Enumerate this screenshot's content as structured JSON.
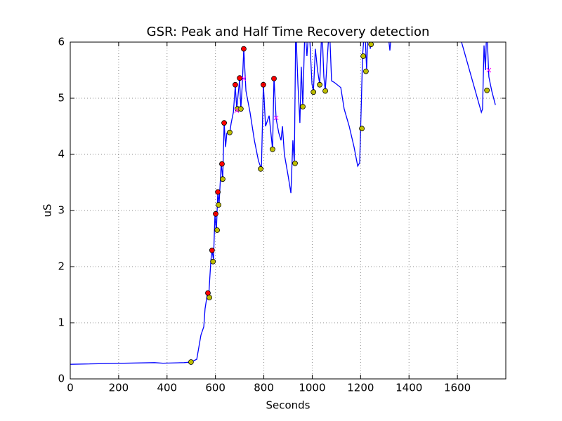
{
  "chart_data": {
    "type": "line",
    "title": "GSR: Peak and Half Time Recovery detection",
    "x_label": "Seconds",
    "y_label": "uS",
    "xlim": [
      0,
      1800
    ],
    "ylim": [
      0,
      6
    ],
    "xticks": [
      0,
      200,
      400,
      600,
      800,
      1000,
      1200,
      1400,
      1600
    ],
    "yticks": [
      0,
      1,
      2,
      3,
      4,
      5,
      6
    ],
    "grid": true,
    "series": [
      {
        "type": "line",
        "color": "#0000ff",
        "x": [
          0,
          348,
          383,
          470,
          499,
          523,
          540,
          552,
          557,
          566,
          572,
          581,
          586,
          592,
          598,
          604,
          610,
          615,
          624,
          630,
          636,
          642,
          647,
          659,
          665,
          674,
          682,
          688,
          700,
          705,
          711,
          717,
          726,
          743,
          761,
          778,
          790,
          798,
          807,
          822,
          836,
          842,
          851,
          862,
          871,
          877,
          885,
          900,
          912,
          920,
          926,
          932,
          941,
          949,
          955,
          961,
          970,
          978,
          987,
          999,
          1005,
          1013,
          1022,
          1031,
          1040,
          1048,
          1054,
          1063,
          1071,
          1080,
          1092,
          1118,
          1132,
          1153,
          1173,
          1188,
          1196,
          1202,
          1208,
          1217,
          1225,
          1231,
          1240,
          1248,
          1260,
          1310,
          1321,
          1330,
          1600,
          1617,
          1699,
          1704,
          1710,
          1716,
          1721,
          1730,
          1742,
          1757
        ],
        "values": [
          0.26,
          0.29,
          0.28,
          0.29,
          0.3,
          0.35,
          0.78,
          0.93,
          1.25,
          1.5,
          1.45,
          2.1,
          2.29,
          2.12,
          2.94,
          2.63,
          3.35,
          3.1,
          3.84,
          3.56,
          4.56,
          4.13,
          4.38,
          4.38,
          4.56,
          4.75,
          5.22,
          4.81,
          5.34,
          4.81,
          5.25,
          5.88,
          5.13,
          4.75,
          4.25,
          3.88,
          3.74,
          5.25,
          4.5,
          4.69,
          4.09,
          5.38,
          4.63,
          4.38,
          4.25,
          4.5,
          4.0,
          3.63,
          3.31,
          4.25,
          3.84,
          6.3,
          5.25,
          4.56,
          5.56,
          4.86,
          6.3,
          5.75,
          6.3,
          5.25,
          5.13,
          5.88,
          5.5,
          5.25,
          6.3,
          5.38,
          5.13,
          5.75,
          6.3,
          5.31,
          5.28,
          5.19,
          4.81,
          4.5,
          4.13,
          3.79,
          3.85,
          4.75,
          5.75,
          6.3,
          5.5,
          6.3,
          5.88,
          6.3,
          6.3,
          6.3,
          5.85,
          6.3,
          6.3,
          6.0,
          4.75,
          4.81,
          5.94,
          5.5,
          6.3,
          5.38,
          5.13,
          4.88
        ]
      },
      {
        "type": "scatter",
        "marker": "circle",
        "color": "#ff0000",
        "x": [
          569,
          586,
          601,
          610,
          627,
          636,
          682,
          700,
          717,
          798,
          842
        ],
        "values": [
          1.53,
          2.29,
          2.94,
          3.33,
          3.83,
          4.56,
          5.24,
          5.36,
          5.88,
          5.24,
          5.35
        ]
      },
      {
        "type": "scatter",
        "marker": "circle",
        "color": "#bfbf00",
        "x": [
          499,
          575,
          590,
          607,
          613,
          630,
          659,
          691,
          705,
          787,
          836,
          929,
          961,
          1005,
          1031,
          1054,
          1205,
          1211,
          1222,
          1243,
          1722
        ],
        "values": [
          0.3,
          1.45,
          2.09,
          2.65,
          3.1,
          3.56,
          4.39,
          4.81,
          4.81,
          3.74,
          4.09,
          3.84,
          4.85,
          5.11,
          5.24,
          5.13,
          4.46,
          5.75,
          5.48,
          5.96,
          5.14
        ]
      },
      {
        "type": "scatter",
        "marker": "x",
        "color": "#ff00ff",
        "x": [
          688,
          717,
          851,
          1730
        ],
        "values": [
          4.78,
          5.35,
          4.65,
          5.5
        ]
      }
    ]
  }
}
